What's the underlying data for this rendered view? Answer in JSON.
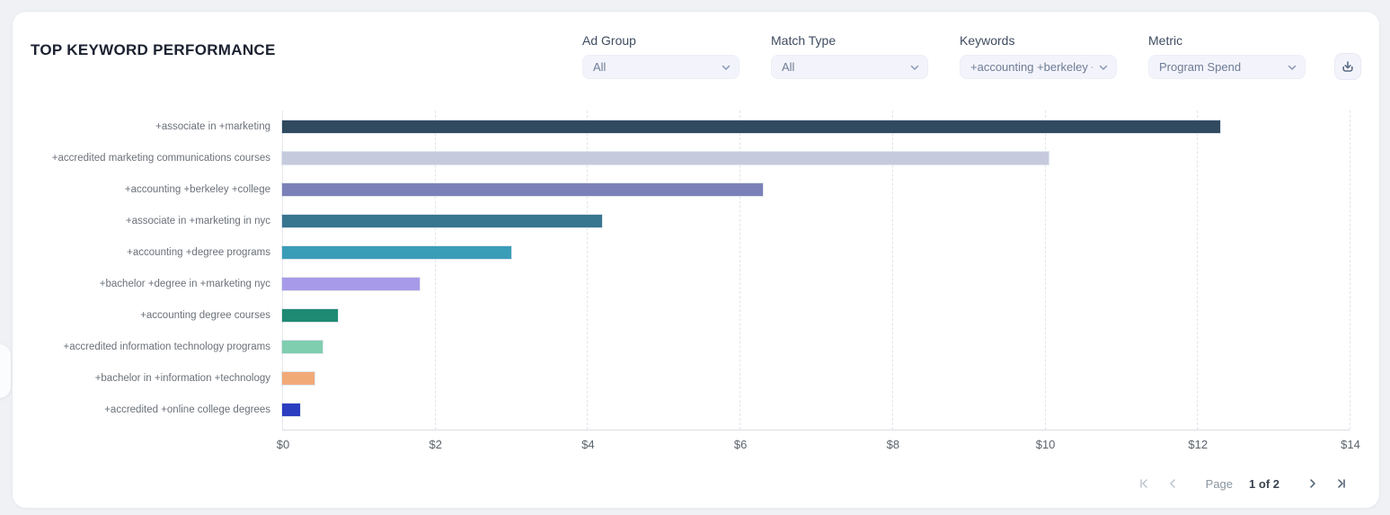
{
  "header": {
    "title": "TOP KEYWORD PERFORMANCE",
    "filters": [
      {
        "id": "ad-group",
        "label": "Ad Group",
        "value": "All"
      },
      {
        "id": "match-type",
        "label": "Match Type",
        "value": "All"
      },
      {
        "id": "keywords",
        "label": "Keywords",
        "value": "+accounting +berkeley +co"
      },
      {
        "id": "metric",
        "label": "Metric",
        "value": "Program Spend"
      }
    ],
    "icons": {
      "download": "download-icon",
      "dropdown": "chevron-down-icon"
    }
  },
  "chart_data": {
    "type": "bar",
    "orientation": "horizontal",
    "title": "TOP KEYWORD PERFORMANCE",
    "xlabel": "",
    "ylabel": "",
    "xlim": [
      0,
      14
    ],
    "x_tick_values": [
      0,
      2,
      4,
      6,
      8,
      10,
      12,
      14
    ],
    "x_tick_labels": [
      "$0",
      "$2",
      "$4",
      "$6",
      "$8",
      "$10",
      "$12",
      "$14"
    ],
    "grid": "dashed-vertical",
    "legend": "none",
    "metric": "Program Spend",
    "categories": [
      "+associate in +marketing",
      "+accredited marketing communications courses",
      "+accounting +berkeley +college",
      "+associate in +marketing in nyc",
      "+accounting +degree programs",
      "+bachelor +degree in +marketing nyc",
      "+accounting degree courses",
      "+accredited information technology programs",
      "+bachelor in +information +technology",
      "+accredited +online college degrees"
    ],
    "values": [
      12.3,
      10.05,
      6.3,
      4.2,
      3.0,
      1.8,
      0.73,
      0.53,
      0.42,
      0.24
    ],
    "bar_colors": [
      "#304a60",
      "#c6cadd",
      "#7b81b8",
      "#38758f",
      "#3a9db8",
      "#a79ae8",
      "#1f8a73",
      "#7fceaf",
      "#f2a978",
      "#2c3ec0"
    ]
  },
  "pagination": {
    "page_label": "Page",
    "current_page_label": "1 of 2",
    "icons": {
      "first": "first-page-icon",
      "previous": "chevron-left-icon",
      "next": "chevron-right-icon",
      "last": "last-page-icon"
    }
  }
}
